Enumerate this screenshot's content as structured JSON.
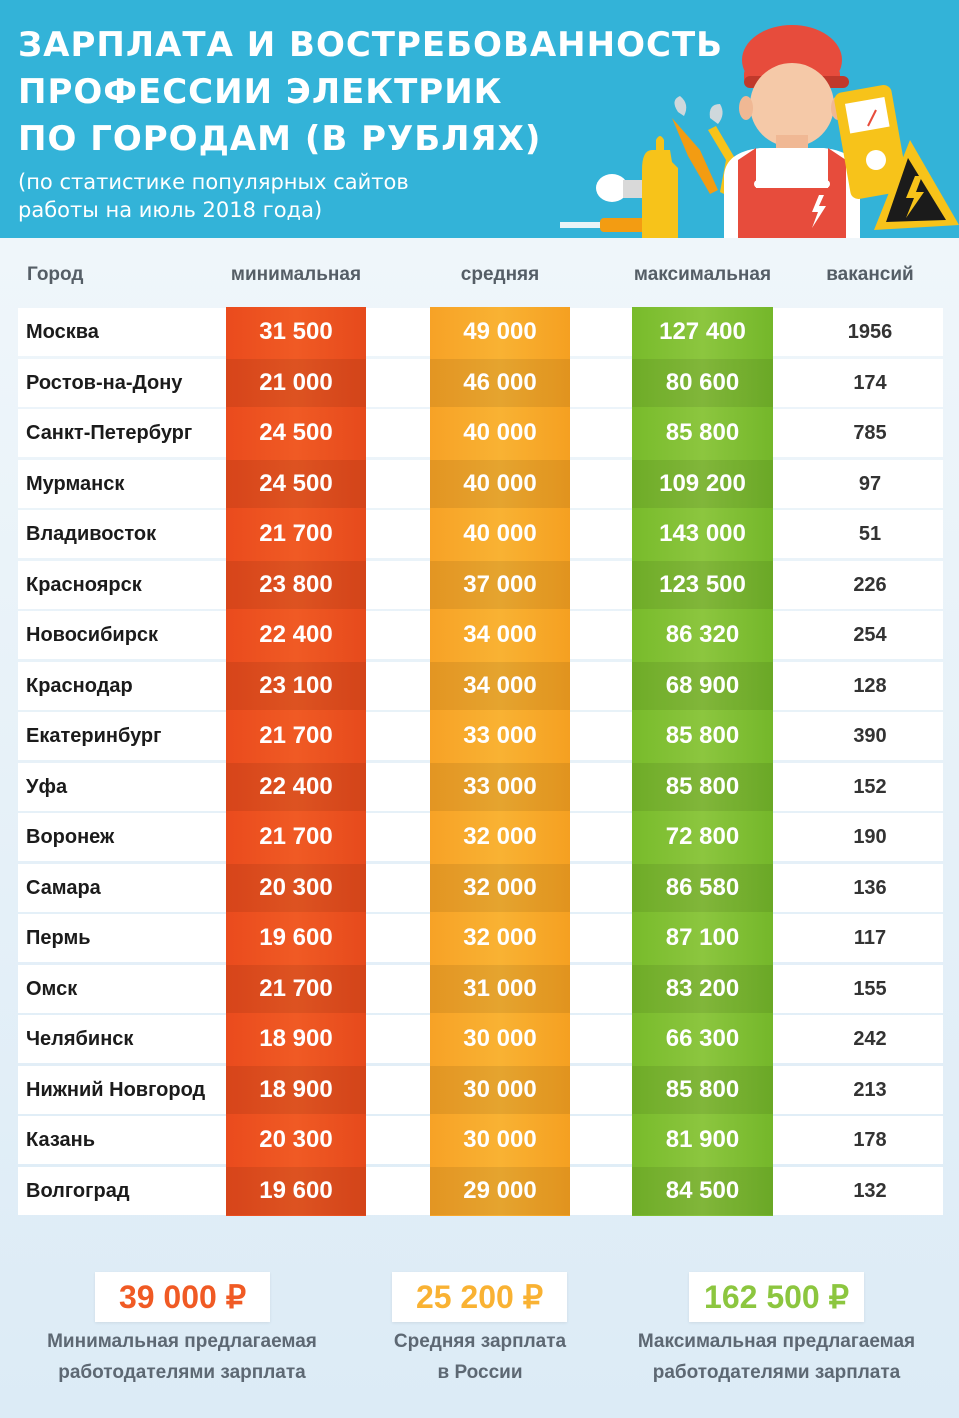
{
  "header": {
    "title_lines": [
      "ЗАРПЛАТА И ВОСТРЕБОВАННОСТЬ",
      "ПРОФЕССИИ ЭЛЕКТРИК",
      "ПО ГОРОДАМ (В РУБЛЯХ)"
    ],
    "subtitle_lines": [
      "(по статистике популярных сайтов",
      "работы на июль 2018 года)"
    ]
  },
  "columns": {
    "city": "Город",
    "min": "минимальная",
    "avg": "средняя",
    "max": "максимальная",
    "vacancies": "вакансий"
  },
  "colors": {
    "header_bg": "#33b3d8",
    "min": "#f05a24",
    "avg": "#f9b233",
    "max": "#8cc63f"
  },
  "chart_data": {
    "type": "table",
    "title": "ЗАРПЛАТА И ВОСТРЕБОВАННОСТЬ ПРОФЕССИИ ЭЛЕКТРИК ПО ГОРОДАМ (В РУБЛЯХ)",
    "columns": [
      "Город",
      "минимальная",
      "средняя",
      "максимальная",
      "вакансий"
    ],
    "rows": [
      {
        "city": "Москва",
        "min": "31 500",
        "avg": "49 000",
        "max": "127 400",
        "vacancies": "1956"
      },
      {
        "city": "Ростов-на-Дону",
        "min": "21 000",
        "avg": "46 000",
        "max": "80 600",
        "vacancies": "174"
      },
      {
        "city": "Санкт-Петербург",
        "min": "24 500",
        "avg": "40 000",
        "max": "85 800",
        "vacancies": "785"
      },
      {
        "city": "Мурманск",
        "min": "24 500",
        "avg": "40 000",
        "max": "109 200",
        "vacancies": "97"
      },
      {
        "city": "Владивосток",
        "min": "21 700",
        "avg": "40 000",
        "max": "143 000",
        "vacancies": "51"
      },
      {
        "city": "Красноярск",
        "min": "23 800",
        "avg": "37 000",
        "max": "123 500",
        "vacancies": "226"
      },
      {
        "city": "Новосибирск",
        "min": "22 400",
        "avg": "34 000",
        "max": "86 320",
        "vacancies": "254"
      },
      {
        "city": "Краснодар",
        "min": "23 100",
        "avg": "34 000",
        "max": "68 900",
        "vacancies": "128"
      },
      {
        "city": "Екатеринбург",
        "min": "21 700",
        "avg": "33 000",
        "max": "85 800",
        "vacancies": "390"
      },
      {
        "city": "Уфа",
        "min": "22 400",
        "avg": "33 000",
        "max": "85 800",
        "vacancies": "152"
      },
      {
        "city": "Воронеж",
        "min": "21 700",
        "avg": "32 000",
        "max": "72 800",
        "vacancies": "190"
      },
      {
        "city": "Самара",
        "min": "20 300",
        "avg": "32 000",
        "max": "86 580",
        "vacancies": "136"
      },
      {
        "city": "Пермь",
        "min": "19 600",
        "avg": "32 000",
        "max": "87 100",
        "vacancies": "117"
      },
      {
        "city": "Омск",
        "min": "21 700",
        "avg": "31 000",
        "max": "83 200",
        "vacancies": "155"
      },
      {
        "city": "Челябинск",
        "min": "18 900",
        "avg": "30 000",
        "max": "66 300",
        "vacancies": "242"
      },
      {
        "city": "Нижний Новгород",
        "min": "18 900",
        "avg": "30 000",
        "max": "85 800",
        "vacancies": "213"
      },
      {
        "city": "Казань",
        "min": "20 300",
        "avg": "30 000",
        "max": "81 900",
        "vacancies": "178"
      },
      {
        "city": "Волгоград",
        "min": "19 600",
        "avg": "29 000",
        "max": "84 500",
        "vacancies": "132"
      }
    ]
  },
  "summary": [
    {
      "value": "39 000 ₽",
      "label_lines": [
        "Минимальная предлагаемая",
        "работодателями зарплата"
      ],
      "color": "#f05a24"
    },
    {
      "value": "25 200 ₽",
      "label_lines": [
        "Средняя зарплата",
        "в России"
      ],
      "color": "#f9b233"
    },
    {
      "value": "162 500 ₽",
      "label_lines": [
        "Максимальная предлагаемая",
        "работодателями зарплата"
      ],
      "color": "#8cc63f"
    }
  ]
}
